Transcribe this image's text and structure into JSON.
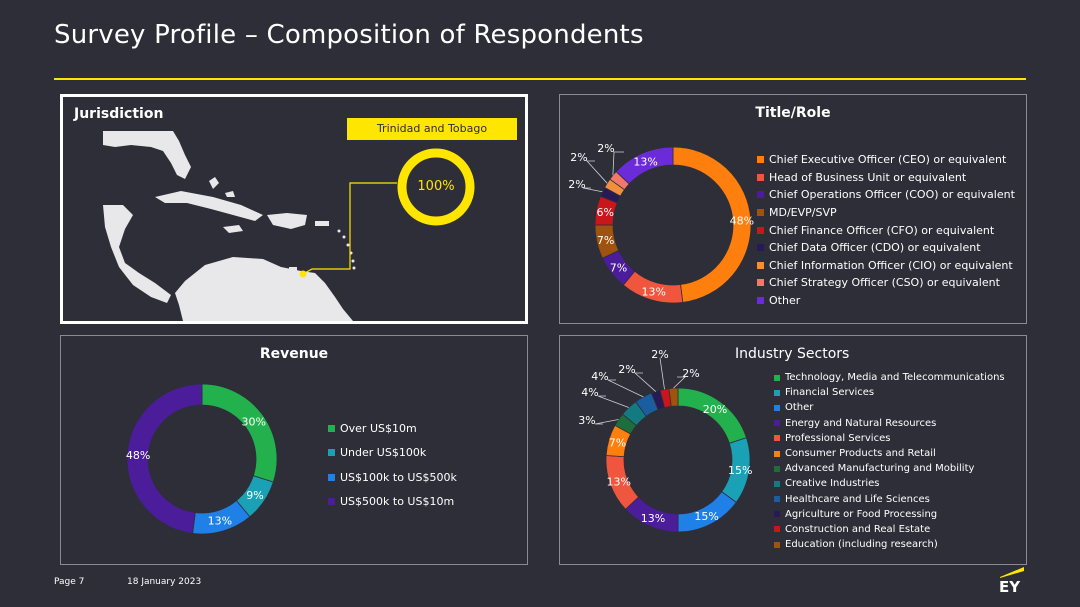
{
  "header": {
    "title": "Survey Profile – Composition of Respondents"
  },
  "footer": {
    "page": "Page 7",
    "date": "18 January 2023",
    "logo_text": "EY"
  },
  "jurisdiction": {
    "title": "Jurisdiction",
    "country_label": "Trinidad and Tobago",
    "value_label": "100%"
  },
  "colors": {
    "accent": "#ffe600",
    "background": "#2e2e38",
    "map_land": "#e8e8ea"
  },
  "chart_data": [
    {
      "id": "jurisdiction",
      "type": "pie",
      "title": "Jurisdiction",
      "categories": [
        "Trinidad and Tobago"
      ],
      "values": [
        100
      ],
      "labels": [
        "100%"
      ],
      "colors": [
        "#ffe600"
      ]
    },
    {
      "id": "title_role",
      "type": "pie",
      "title": "Title/Role",
      "legend": "right",
      "categories": [
        "Chief Executive Officer (CEO) or equivalent",
        "Head of Business Unit or equivalent",
        "Chief Operations Officer (COO) or equivalent",
        "MD/EVP/SVP",
        "Chief Finance Officer (CFO) or equivalent",
        "Chief Data Officer (CDO) or equivalent",
        "Chief Information Officer (CIO) or equivalent",
        "Chief Strategy Officer (CSO) or equivalent",
        "Other"
      ],
      "values": [
        48,
        13,
        7,
        7,
        6,
        2,
        2,
        2,
        13
      ],
      "labels": [
        "48%",
        "13%",
        "7%",
        "7%",
        "6%",
        "2%",
        "2%",
        "2%",
        "13%"
      ],
      "colors": [
        "#ff7f0e",
        "#f0553e",
        "#4b1d9b",
        "#a0520f",
        "#c9161b",
        "#281a57",
        "#f08f3e",
        "#f2786a",
        "#6c2bd9"
      ]
    },
    {
      "id": "revenue",
      "type": "pie",
      "title": "Revenue",
      "legend": "right",
      "categories": [
        "Over US$10m",
        "Under US$100k",
        "US$100k to US$500k",
        "US$500k to US$10m"
      ],
      "values": [
        30,
        9,
        13,
        48
      ],
      "labels": [
        "30%",
        "9%",
        "13%",
        "48%"
      ],
      "colors": [
        "#22b14c",
        "#1ba1b5",
        "#1f81e8",
        "#4b1d9b"
      ]
    },
    {
      "id": "industry_sectors",
      "type": "pie",
      "title": "Industry Sectors",
      "legend": "right",
      "categories": [
        "Technology, Media and Telecommunications",
        "Financial Services",
        "Other",
        "Energy and Natural Resources",
        "Professional Services",
        "Consumer Products and Retail",
        "Advanced Manufacturing and Mobility",
        "Creative Industries",
        "Healthcare and Life Sciences",
        "Agriculture or Food Processing",
        "Construction and Real Estate",
        "Education (including research)"
      ],
      "values": [
        20,
        15,
        15,
        13,
        13,
        7,
        3,
        4,
        4,
        2,
        2,
        2
      ],
      "labels": [
        "20%",
        "15%",
        "15%",
        "13%",
        "13%",
        "7%",
        "3%",
        "4%",
        "4%",
        "2%",
        "2%",
        "2%"
      ],
      "colors": [
        "#22b14c",
        "#1ba1b5",
        "#1f81e8",
        "#4b1d9b",
        "#f0553e",
        "#ff7f0e",
        "#1d6e3c",
        "#137a82",
        "#1a5ea0",
        "#281a57",
        "#c9161b",
        "#a0520f"
      ]
    }
  ]
}
